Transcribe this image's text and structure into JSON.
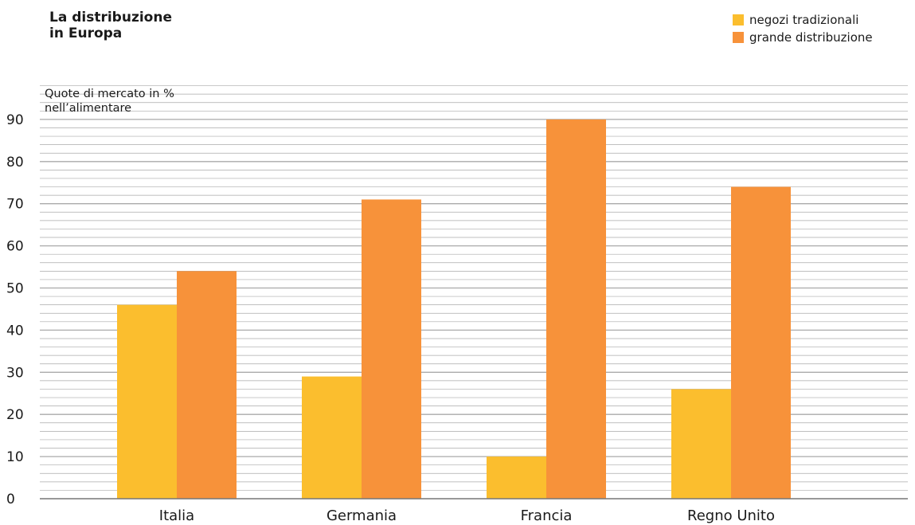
{
  "chart_data": {
    "type": "bar",
    "title_lines": [
      "La distribuzione",
      "in Europa"
    ],
    "ylabel_lines": [
      "Quote di mercato in %",
      "nell’alimentare"
    ],
    "categories": [
      "Italia",
      "Germania",
      "Francia",
      "Regno Unito"
    ],
    "series": [
      {
        "name": "negozi tradizionali",
        "values": [
          46,
          29,
          10,
          26
        ],
        "color": "#fbbe2e"
      },
      {
        "name": "grande distribuzione",
        "values": [
          54,
          71,
          90,
          74
        ],
        "color": "#f7923a"
      }
    ],
    "yticks": [
      0,
      10,
      20,
      30,
      40,
      50,
      60,
      70,
      80,
      90
    ],
    "ylim": [
      0,
      90
    ],
    "grid": true,
    "grid_color": "#aaaaaa",
    "legend_position": "top-right"
  }
}
